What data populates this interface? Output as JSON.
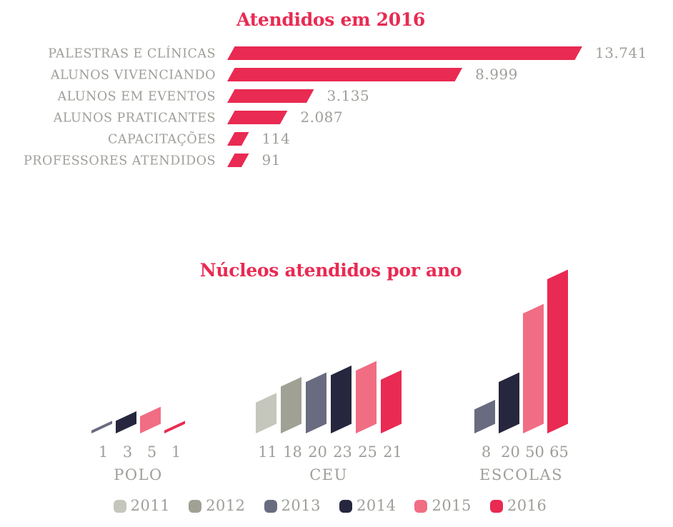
{
  "page": {
    "background": "#ffffff"
  },
  "colors": {
    "accent_crimson": "#e92a52",
    "text_gray": "#9da099"
  },
  "chart_data": [
    {
      "type": "bar",
      "orientation": "horizontal",
      "title": "Atendidos em 2016",
      "title_color": "#e92a52",
      "bar_color": "#e92a52",
      "bar_shape": "parallelogram-right-slant",
      "grid": false,
      "xlim": [
        0,
        14000
      ],
      "categories": [
        "PALESTRAS E CLÍNICAS",
        "ALUNOS VIVENCIANDO",
        "ALUNOS EM EVENTOS",
        "ALUNOS PRATICANTES",
        "CAPACITAÇÕES",
        "PROFESSORES ATENDIDOS"
      ],
      "values": [
        13741,
        8999,
        3135,
        2087,
        114,
        91
      ],
      "value_labels": [
        "13.741",
        "8.999",
        "3.135",
        "2.087",
        "114",
        "91"
      ]
    },
    {
      "type": "bar",
      "orientation": "vertical",
      "grouped": true,
      "title": "Núcleos atendidos por ano",
      "title_color": "#e92a52",
      "bar_shape": "parallelogram-rising-right",
      "grid": false,
      "ylim": [
        0,
        65
      ],
      "groups": [
        {
          "label": "POLO",
          "bars": [
            {
              "year": "2013",
              "value": 1
            },
            {
              "year": "2014",
              "value": 3
            },
            {
              "year": "2015",
              "value": 5
            },
            {
              "year": "2016",
              "value": 1
            }
          ]
        },
        {
          "label": "CEU",
          "bars": [
            {
              "year": "2011",
              "value": 11
            },
            {
              "year": "2012",
              "value": 18
            },
            {
              "year": "2013",
              "value": 20
            },
            {
              "year": "2014",
              "value": 23
            },
            {
              "year": "2015",
              "value": 25
            },
            {
              "year": "2016",
              "value": 21
            }
          ]
        },
        {
          "label": "ESCOLAS",
          "bars": [
            {
              "year": "2013",
              "value": 8
            },
            {
              "year": "2014",
              "value": 20
            },
            {
              "year": "2015",
              "value": 50
            },
            {
              "year": "2016",
              "value": 65
            }
          ]
        }
      ],
      "legend_position": "bottom",
      "legend": [
        {
          "label": "2011",
          "color": "#c5c6bc"
        },
        {
          "label": "2012",
          "color": "#a0a194"
        },
        {
          "label": "2013",
          "color": "#696b80"
        },
        {
          "label": "2014",
          "color": "#26263e"
        },
        {
          "label": "2015",
          "color": "#f16d84"
        },
        {
          "label": "2016",
          "color": "#e92a52"
        }
      ]
    }
  ]
}
